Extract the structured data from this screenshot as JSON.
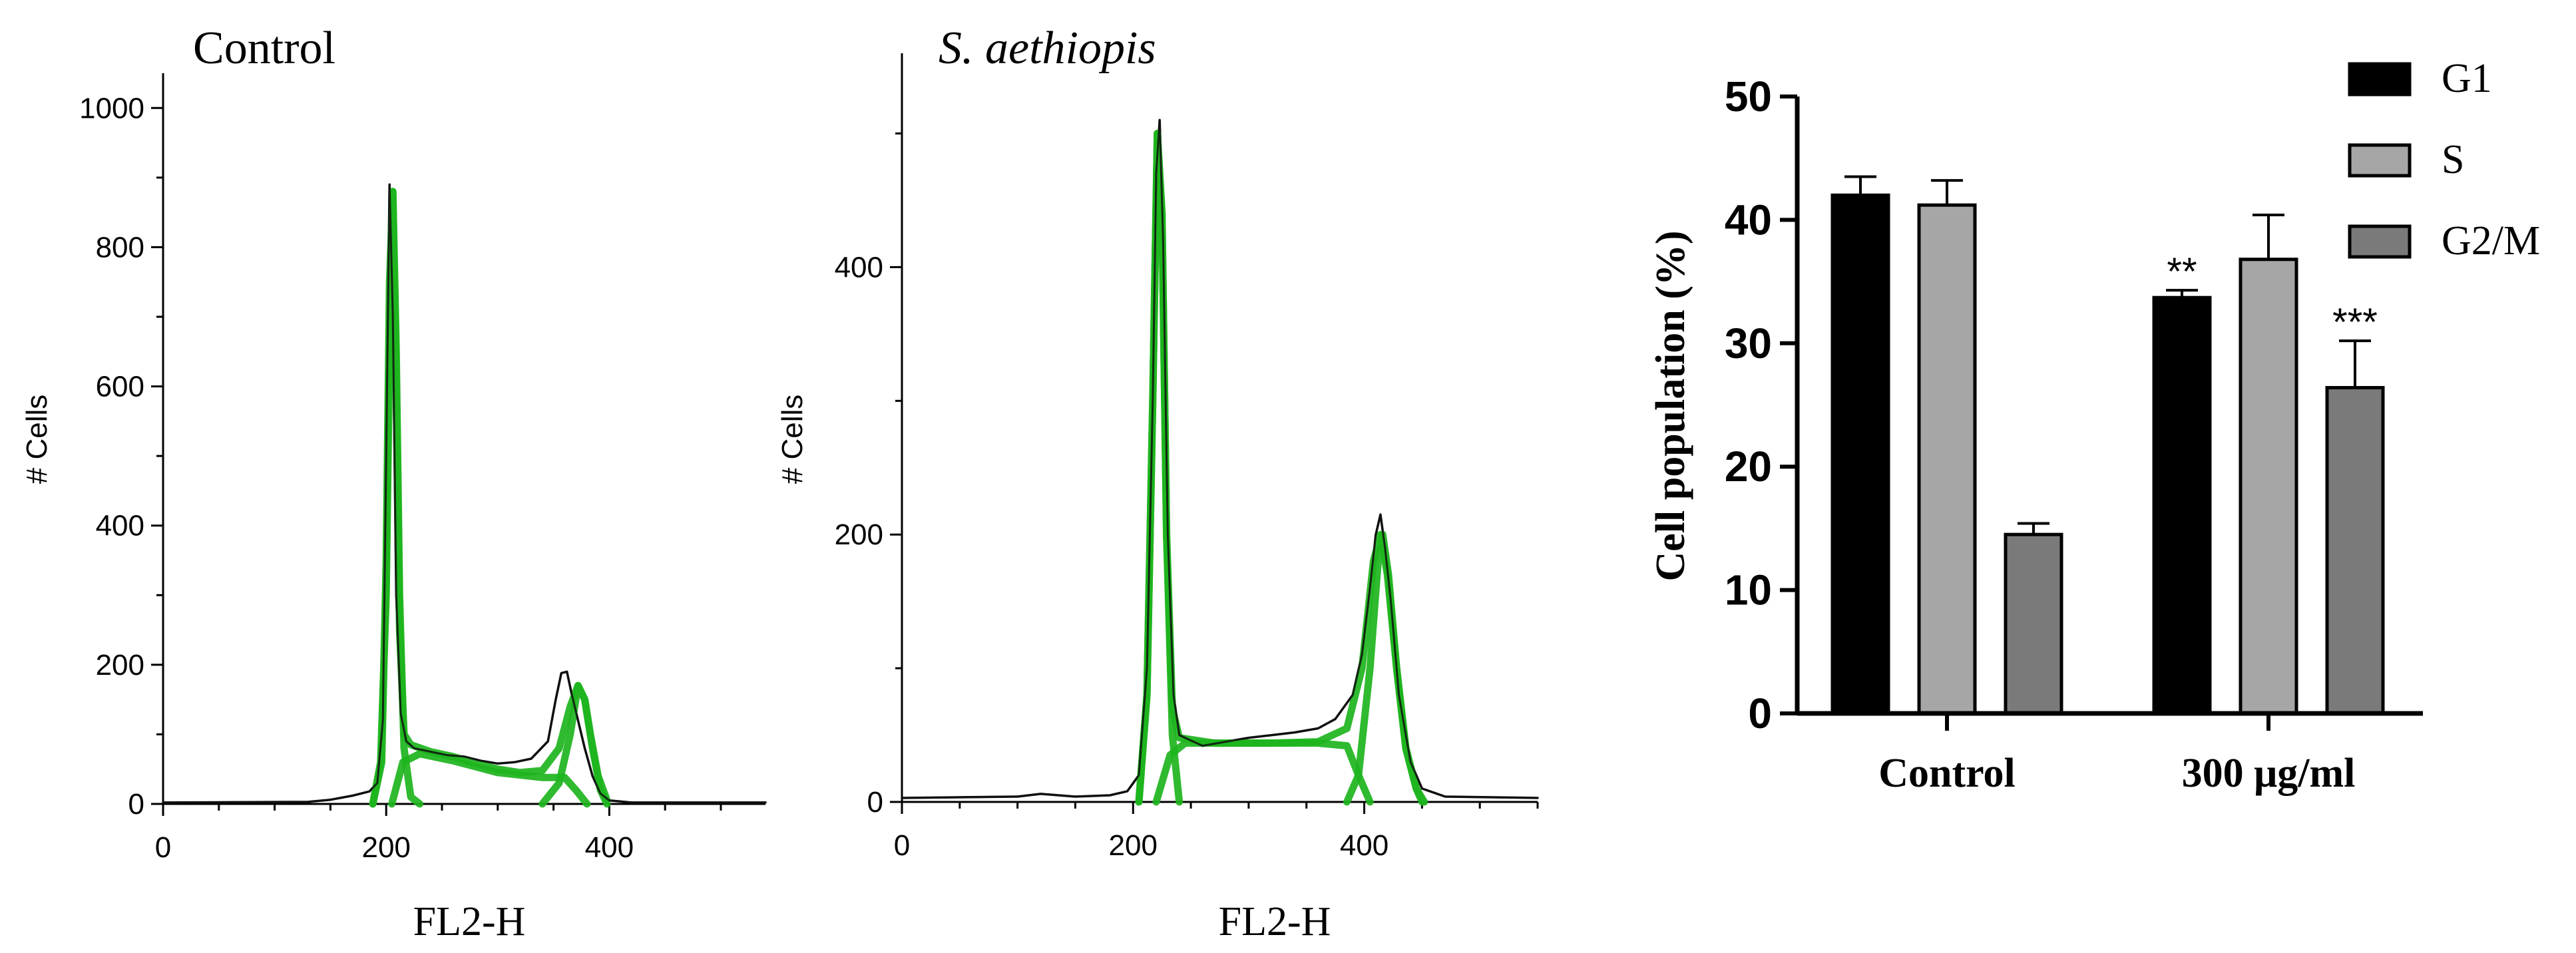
{
  "colors": {
    "histogram_trace": "#111111",
    "fit_curve": "#1db41d",
    "G1": "#000000",
    "S": "#a6a6a6",
    "G2M": "#7a7a7a",
    "axis": "#000000"
  },
  "chart_data": [
    {
      "type": "line",
      "title": "Control",
      "xlabel": "FL2-H",
      "ylabel": "# Cells",
      "xlim": [
        0,
        540
      ],
      "ylim": [
        0,
        1050
      ],
      "x_ticks": [
        0,
        200,
        400
      ],
      "y_ticks": [
        0,
        200,
        400,
        600,
        800,
        1000
      ],
      "series": [
        {
          "role": "histogram",
          "points": [
            [
              0,
              2
            ],
            [
              130,
              3
            ],
            [
              150,
              6
            ],
            [
              170,
              12
            ],
            [
              185,
              18
            ],
            [
              192,
              30
            ],
            [
              197,
              120
            ],
            [
              200,
              500
            ],
            [
              203,
              890
            ],
            [
              206,
              700
            ],
            [
              209,
              300
            ],
            [
              213,
              130
            ],
            [
              218,
              90
            ],
            [
              225,
              80
            ],
            [
              240,
              75
            ],
            [
              255,
              70
            ],
            [
              270,
              68
            ],
            [
              285,
              62
            ],
            [
              300,
              58
            ],
            [
              315,
              60
            ],
            [
              330,
              65
            ],
            [
              345,
              90
            ],
            [
              352,
              150
            ],
            [
              357,
              188
            ],
            [
              362,
              190
            ],
            [
              366,
              160
            ],
            [
              372,
              120
            ],
            [
              378,
              80
            ],
            [
              385,
              40
            ],
            [
              392,
              15
            ],
            [
              400,
              5
            ],
            [
              420,
              2
            ],
            [
              540,
              2
            ]
          ]
        },
        {
          "role": "fit_total",
          "points": [
            [
              188,
              0
            ],
            [
              196,
              60
            ],
            [
              200,
              350
            ],
            [
              203,
              750
            ],
            [
              206,
              880
            ],
            [
              209,
              600
            ],
            [
              212,
              250
            ],
            [
              216,
              100
            ],
            [
              222,
              85
            ],
            [
              240,
              75
            ],
            [
              260,
              68
            ],
            [
              280,
              58
            ],
            [
              300,
              50
            ],
            [
              320,
              45
            ],
            [
              340,
              48
            ],
            [
              355,
              80
            ],
            [
              365,
              140
            ],
            [
              372,
              170
            ],
            [
              378,
              150
            ],
            [
              383,
              100
            ],
            [
              390,
              40
            ],
            [
              398,
              5
            ]
          ]
        },
        {
          "role": "fit_g1",
          "points": [
            [
              188,
              0
            ],
            [
              195,
              60
            ],
            [
              200,
              300
            ],
            [
              203,
              650
            ],
            [
              206,
              880
            ],
            [
              209,
              650
            ],
            [
              212,
              300
            ],
            [
              216,
              80
            ],
            [
              222,
              10
            ],
            [
              230,
              0
            ]
          ]
        },
        {
          "role": "fit_s",
          "points": [
            [
              205,
              0
            ],
            [
              215,
              60
            ],
            [
              230,
              72
            ],
            [
              260,
              62
            ],
            [
              300,
              45
            ],
            [
              340,
              38
            ],
            [
              360,
              38
            ],
            [
              370,
              20
            ],
            [
              380,
              0
            ]
          ]
        },
        {
          "role": "fit_g2m",
          "points": [
            [
              340,
              0
            ],
            [
              355,
              30
            ],
            [
              365,
              100
            ],
            [
              372,
              170
            ],
            [
              378,
              150
            ],
            [
              385,
              80
            ],
            [
              392,
              20
            ],
            [
              398,
              0
            ]
          ]
        }
      ]
    },
    {
      "type": "line",
      "title": "S. aethiopis",
      "xlabel": "FL2-H",
      "ylabel": "# Cells",
      "xlim": [
        0,
        550
      ],
      "ylim": [
        0,
        560
      ],
      "x_ticks": [
        0,
        200,
        400
      ],
      "y_ticks": [
        0,
        200,
        400
      ],
      "series": [
        {
          "role": "histogram",
          "points": [
            [
              0,
              3
            ],
            [
              100,
              4
            ],
            [
              120,
              6
            ],
            [
              150,
              4
            ],
            [
              180,
              5
            ],
            [
              195,
              8
            ],
            [
              205,
              20
            ],
            [
              212,
              100
            ],
            [
              217,
              300
            ],
            [
              220,
              470
            ],
            [
              223,
              510
            ],
            [
              226,
              420
            ],
            [
              230,
              200
            ],
            [
              235,
              80
            ],
            [
              240,
              50
            ],
            [
              260,
              42
            ],
            [
              280,
              45
            ],
            [
              300,
              48
            ],
            [
              320,
              50
            ],
            [
              340,
              52
            ],
            [
              360,
              55
            ],
            [
              375,
              62
            ],
            [
              390,
              80
            ],
            [
              398,
              110
            ],
            [
              405,
              160
            ],
            [
              410,
              200
            ],
            [
              414,
              215
            ],
            [
              418,
              190
            ],
            [
              423,
              150
            ],
            [
              430,
              80
            ],
            [
              440,
              30
            ],
            [
              450,
              10
            ],
            [
              470,
              4
            ],
            [
              550,
              3
            ]
          ]
        },
        {
          "role": "fit_total",
          "points": [
            [
              205,
              0
            ],
            [
              212,
              80
            ],
            [
              217,
              300
            ],
            [
              221,
              500
            ],
            [
              225,
              440
            ],
            [
              229,
              200
            ],
            [
              234,
              70
            ],
            [
              240,
              48
            ],
            [
              270,
              44
            ],
            [
              320,
              44
            ],
            [
              360,
              45
            ],
            [
              385,
              55
            ],
            [
              398,
              100
            ],
            [
              408,
              180
            ],
            [
              414,
              200
            ],
            [
              420,
              170
            ],
            [
              428,
              100
            ],
            [
              436,
              40
            ],
            [
              445,
              10
            ],
            [
              452,
              0
            ]
          ]
        },
        {
          "role": "fit_g1",
          "points": [
            [
              205,
              0
            ],
            [
              212,
              80
            ],
            [
              217,
              300
            ],
            [
              221,
              500
            ],
            [
              225,
              440
            ],
            [
              229,
              200
            ],
            [
              234,
              50
            ],
            [
              240,
              0
            ]
          ]
        },
        {
          "role": "fit_s",
          "points": [
            [
              220,
              0
            ],
            [
              232,
              35
            ],
            [
              245,
              44
            ],
            [
              300,
              44
            ],
            [
              360,
              44
            ],
            [
              385,
              42
            ],
            [
              395,
              20
            ],
            [
              405,
              0
            ]
          ]
        },
        {
          "role": "fit_g2m",
          "points": [
            [
              385,
              0
            ],
            [
              395,
              20
            ],
            [
              405,
              100
            ],
            [
              412,
              180
            ],
            [
              416,
              200
            ],
            [
              421,
              170
            ],
            [
              428,
              100
            ],
            [
              436,
              40
            ],
            [
              445,
              10
            ],
            [
              450,
              0
            ]
          ]
        }
      ]
    },
    {
      "type": "bar",
      "title": "",
      "xlabel": "",
      "ylabel": "Cell population (%)",
      "ylim": [
        0,
        50
      ],
      "y_ticks": [
        0,
        10,
        20,
        30,
        40,
        50
      ],
      "categories": [
        "Control",
        "300 μg/ml"
      ],
      "legend": "top-right",
      "series": [
        {
          "name": "G1",
          "values": [
            42.0,
            33.7
          ],
          "errors": [
            1.5,
            0.6
          ],
          "annotations": [
            "",
            "**"
          ]
        },
        {
          "name": "S",
          "values": [
            41.2,
            36.8
          ],
          "errors": [
            2.0,
            3.6
          ],
          "annotations": [
            "",
            ""
          ]
        },
        {
          "name": "G2/M",
          "values": [
            14.5,
            26.4
          ],
          "errors": [
            0.9,
            3.8
          ],
          "annotations": [
            "",
            "***"
          ]
        }
      ]
    }
  ]
}
